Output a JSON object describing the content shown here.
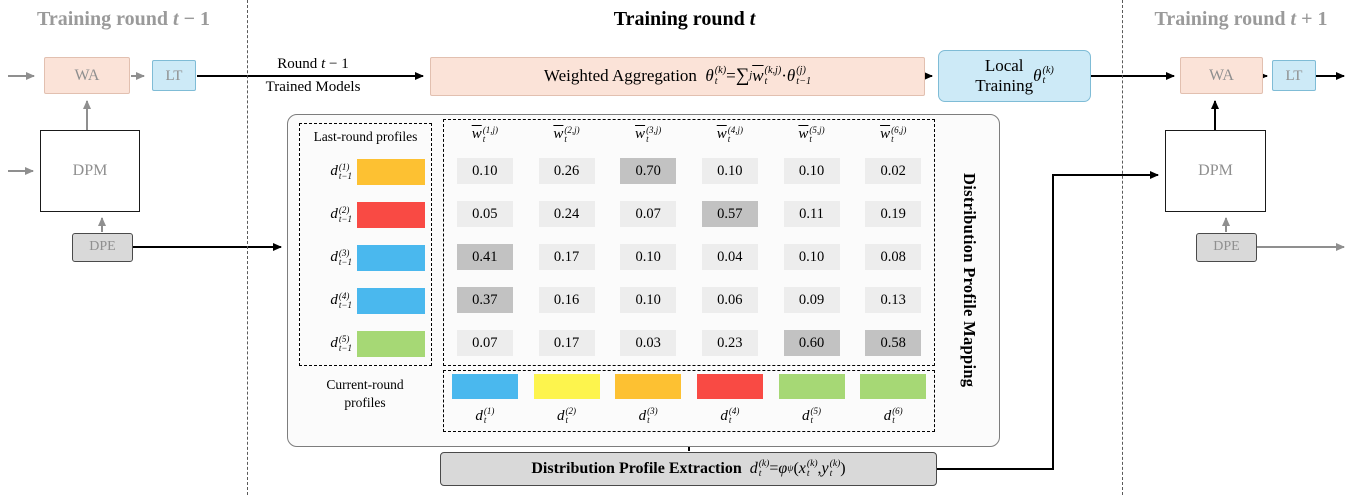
{
  "colors": {
    "peach": "#fbe3d8",
    "blue_box": "#cdeaf7",
    "gray_box": "#d9d9d9",
    "cell": "#ededed",
    "cell_highlight": "#c2c2c2",
    "swatch_orange": "#fdc132",
    "swatch_red": "#f94a44",
    "swatch_blue": "#4ab8ee",
    "swatch_green": "#a6d875",
    "swatch_yellow": "#fdf44d"
  },
  "sections": {
    "prev": {
      "title_html": "Training round <i>t</i> − 1"
    },
    "current": {
      "title_html": "Training round <i>t</i>"
    },
    "next": {
      "title_html": "Training round <i>t</i> + 1"
    }
  },
  "side_boxes": {
    "wa": "WA",
    "lt": "LT",
    "dpm": "DPM",
    "dpe": "DPE"
  },
  "flow": {
    "round_models_line1_html": "Round <i>t</i> − 1",
    "round_models_line2": "Trained Models",
    "weighted_aggregation_html": "Weighted Aggregation&ensp;<i>θ</i><span class='ss'><span>(k)</span><span>t</span></span> = <span class='sum'>∑</span><span class='sub'>j</span> <span class='ov'><i>w</i></span><span class='ss'><span>(k,j)</span><span>t</span></span> · <i>θ</i><span class='ss'><span>(j)</span><span>t−1</span></span>",
    "local_training_html": "Local<br>Training <i>θ</i><span class='ss'><span>(k)</span><span>t</span></span>",
    "extraction_html": "<b>Distribution Profile Extraction</b>&ensp;<i>d</i><span class='ss'><span>(k)</span><span>t</span></span> = <i>φ</i><span class='sub'>ψ</span>(<i>x</i><span class='ss'><span>(k)</span><span>t</span></span>, <i>y</i><span class='ss'><span>(k)</span><span>t</span></span>)"
  },
  "mapping": {
    "panel_title": "Distribution Profile Mapping",
    "last_round_label": "Last-round profiles",
    "current_round_label_line1": "Current-round",
    "current_round_label_line2": "profiles",
    "col_headers_html": [
      "<span class='ov'><i>w</i></span><span class='ss'><span>(1,j)</span><span>t</span></span>",
      "<span class='ov'><i>w</i></span><span class='ss'><span>(2,j)</span><span>t</span></span>",
      "<span class='ov'><i>w</i></span><span class='ss'><span>(3,j)</span><span>t</span></span>",
      "<span class='ov'><i>w</i></span><span class='ss'><span>(4,j)</span><span>t</span></span>",
      "<span class='ov'><i>w</i></span><span class='ss'><span>(5,j)</span><span>t</span></span>",
      "<span class='ov'><i>w</i></span><span class='ss'><span>(6,j)</span><span>t</span></span>"
    ],
    "rows": [
      {
        "label_html": "<i>d</i><span class='ss'><span>(1)</span><span>t−1</span></span>",
        "color": "#fdc132",
        "values": [
          "0.10",
          "0.26",
          "0.70",
          "0.10",
          "0.10",
          "0.02"
        ],
        "highlights": [
          2
        ]
      },
      {
        "label_html": "<i>d</i><span class='ss'><span>(2)</span><span>t−1</span></span>",
        "color": "#f94a44",
        "values": [
          "0.05",
          "0.24",
          "0.07",
          "0.57",
          "0.11",
          "0.19"
        ],
        "highlights": [
          3
        ]
      },
      {
        "label_html": "<i>d</i><span class='ss'><span>(3)</span><span>t−1</span></span>",
        "color": "#4ab8ee",
        "values": [
          "0.41",
          "0.17",
          "0.10",
          "0.04",
          "0.10",
          "0.08"
        ],
        "highlights": [
          0
        ]
      },
      {
        "label_html": "<i>d</i><span class='ss'><span>(4)</span><span>t−1</span></span>",
        "color": "#4ab8ee",
        "values": [
          "0.37",
          "0.16",
          "0.10",
          "0.06",
          "0.09",
          "0.13"
        ],
        "highlights": [
          0
        ]
      },
      {
        "label_html": "<i>d</i><span class='ss'><span>(5)</span><span>t−1</span></span>",
        "color": "#a6d875",
        "values": [
          "0.07",
          "0.17",
          "0.03",
          "0.23",
          "0.60",
          "0.58"
        ],
        "highlights": [
          4,
          5
        ]
      }
    ],
    "current_profiles": [
      {
        "label_html": "<i>d</i><span class='ss'><span>(1)</span><span>t</span></span>",
        "color": "#4ab8ee"
      },
      {
        "label_html": "<i>d</i><span class='ss'><span>(2)</span><span>t</span></span>",
        "color": "#fdf44d"
      },
      {
        "label_html": "<i>d</i><span class='ss'><span>(3)</span><span>t</span></span>",
        "color": "#fdc132"
      },
      {
        "label_html": "<i>d</i><span class='ss'><span>(4)</span><span>t</span></span>",
        "color": "#f94a44"
      },
      {
        "label_html": "<i>d</i><span class='ss'><span>(5)</span><span>t</span></span>",
        "color": "#a6d875"
      },
      {
        "label_html": "<i>d</i><span class='ss'><span>(6)</span><span>t</span></span>",
        "color": "#a6d875"
      }
    ]
  }
}
